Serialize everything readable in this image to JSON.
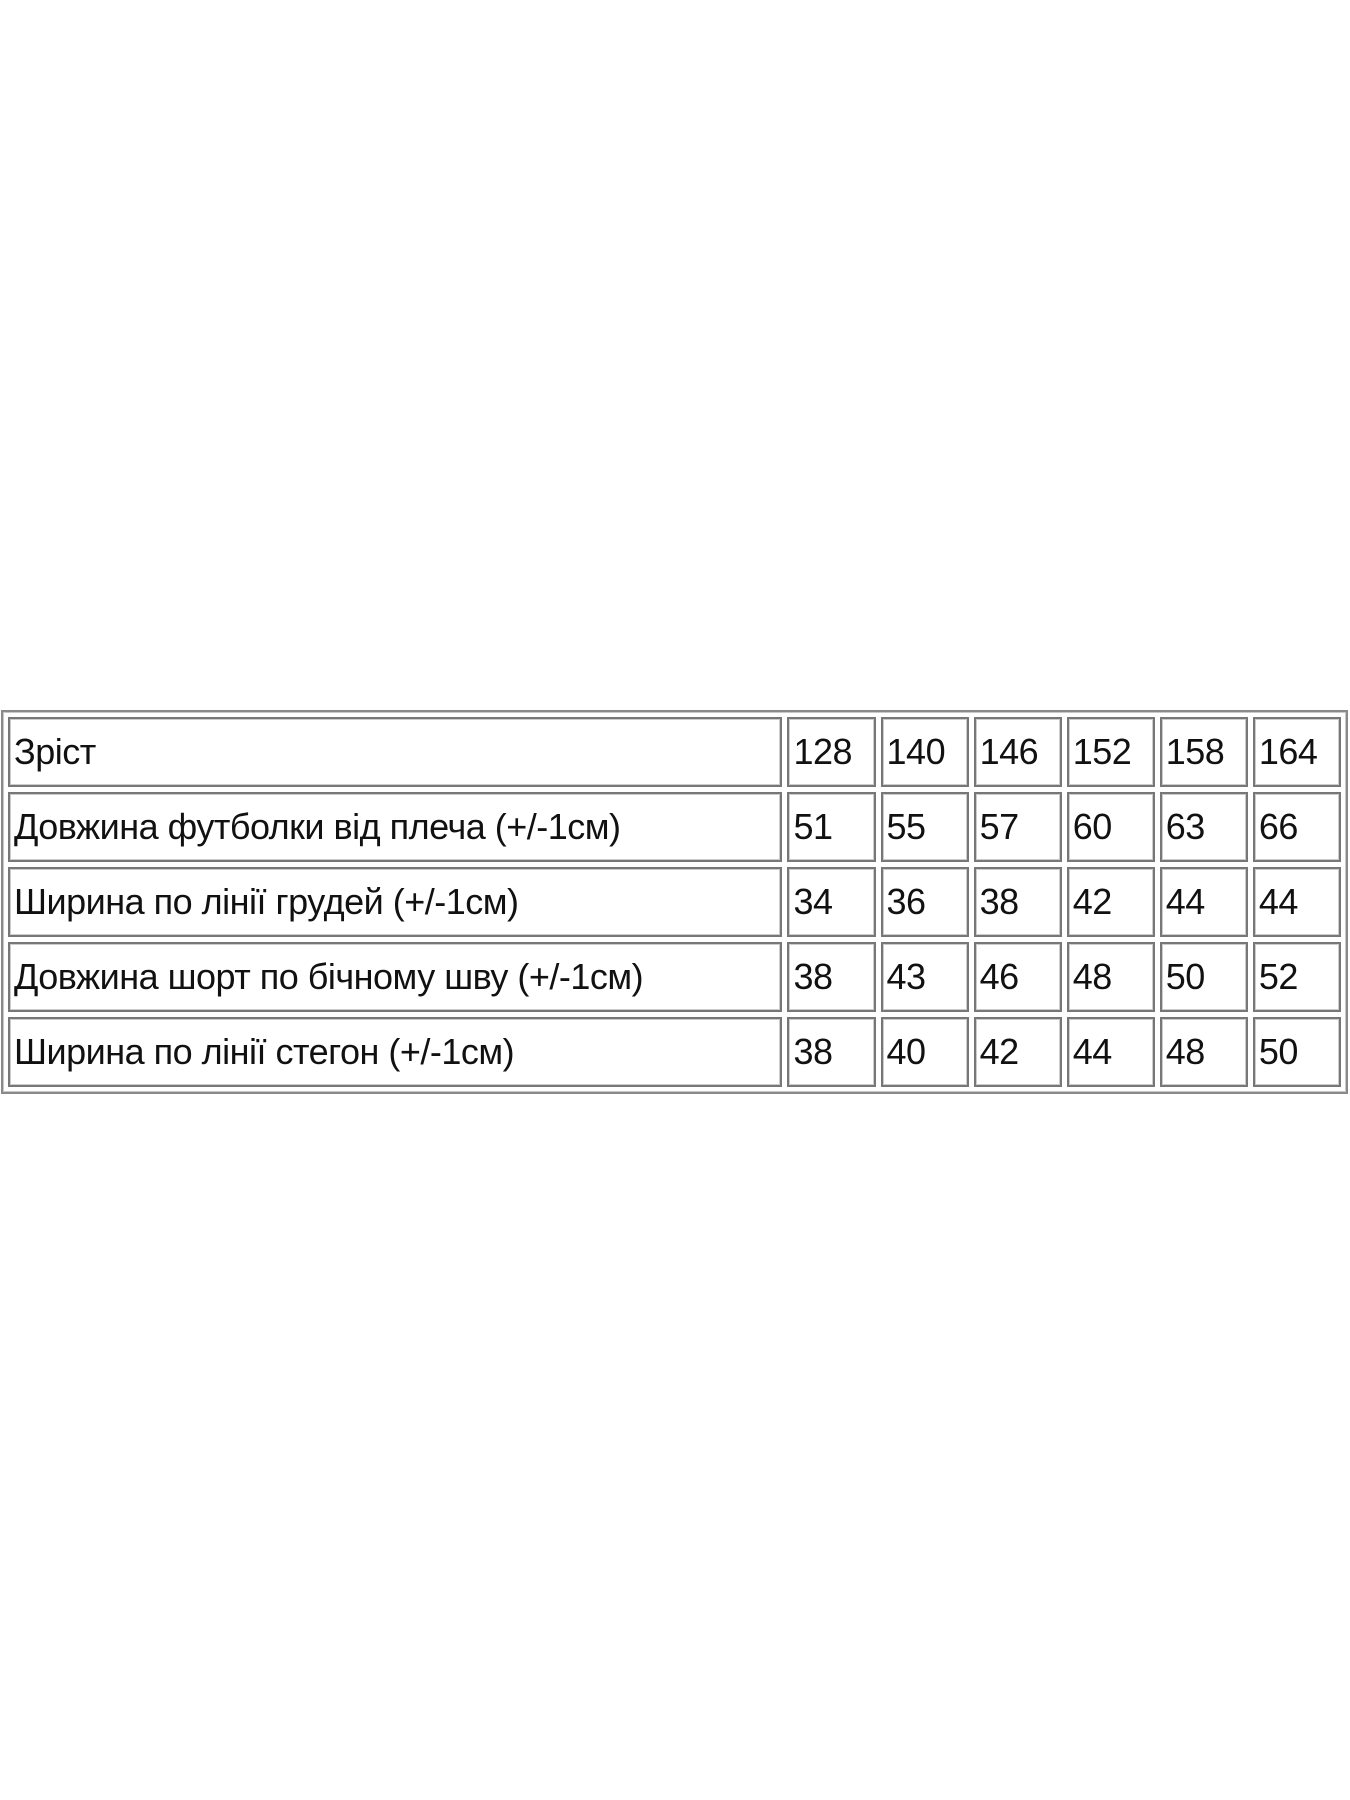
{
  "table": {
    "header": {
      "label": "Зріст",
      "values": [
        "128",
        "140",
        "146",
        "152",
        "158",
        "164"
      ]
    },
    "rows": [
      {
        "label": "Довжина футболки від плеча (+/-1см)",
        "values": [
          "51",
          "55",
          "57",
          "60",
          "63",
          "66"
        ]
      },
      {
        "label": "Ширина по лінії грудей (+/-1см)",
        "values": [
          "34",
          "36",
          "38",
          "42",
          "44",
          "44"
        ]
      },
      {
        "label": "Довжина шорт по бічному шву (+/-1см)",
        "values": [
          "38",
          "43",
          "46",
          "48",
          "50",
          "52"
        ]
      },
      {
        "label": "Ширина по лінії стегон (+/-1см)",
        "values": [
          "38",
          "40",
          "42",
          "44",
          "48",
          "50"
        ]
      }
    ]
  }
}
